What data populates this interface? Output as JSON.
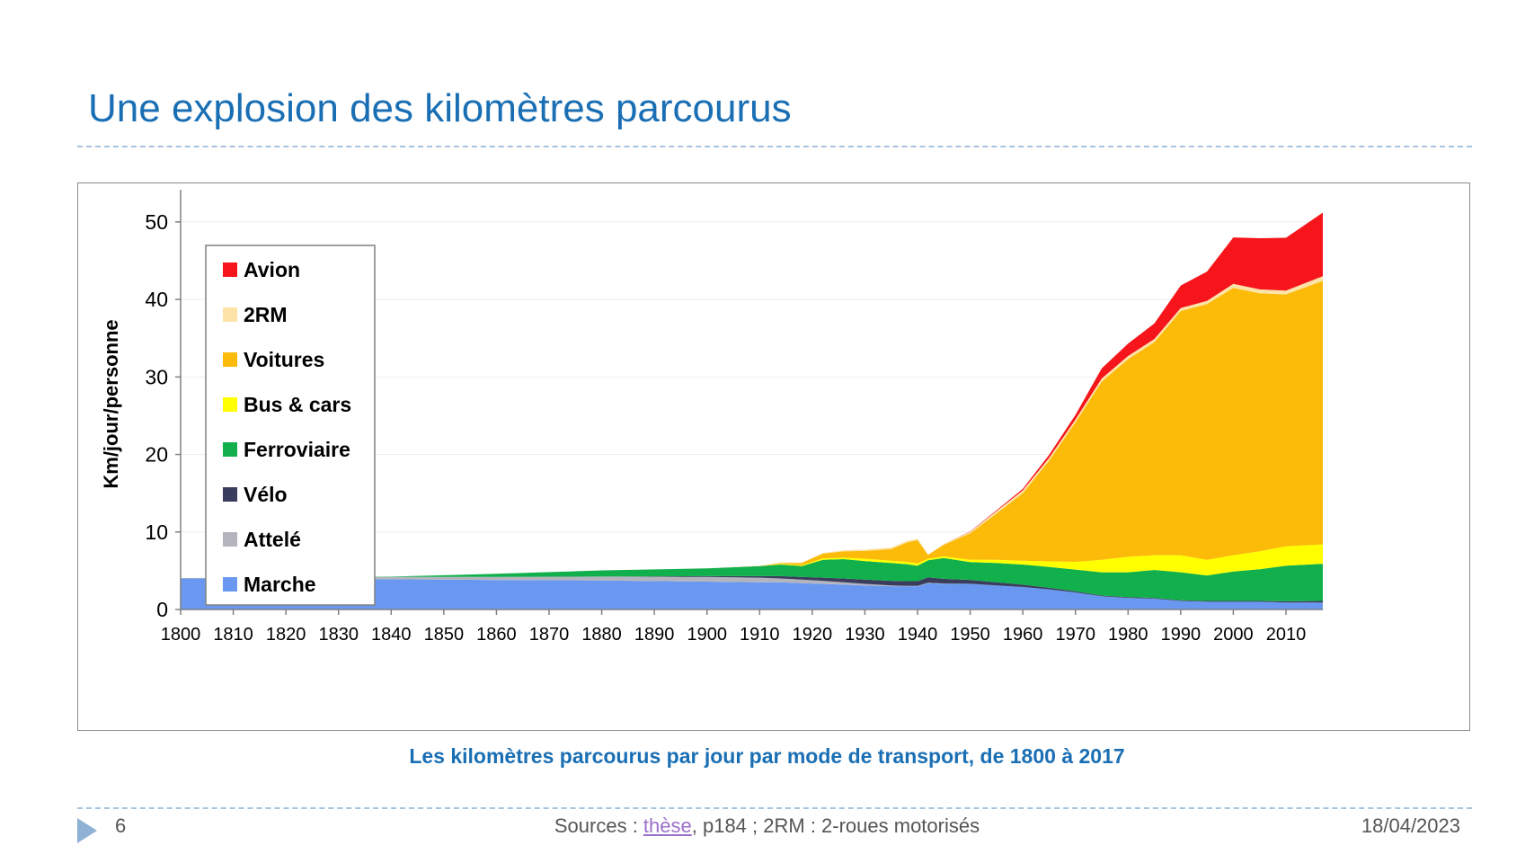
{
  "slide": {
    "title": "Une explosion des kilomètres parcourus",
    "caption": "Les kilomètres parcourus par jour par mode de transport, de 1800 à 2017",
    "page_number": "6",
    "sources_prefix": "Sources : ",
    "sources_link": "thèse",
    "sources_suffix": ", p184 ; 2RM : 2-roues motorisés",
    "date": "18/04/2023"
  },
  "chart_data": {
    "type": "area",
    "stacked": true,
    "ylabel": "Km/jour/personne",
    "xlabel": "",
    "ylim": [
      0,
      53
    ],
    "yticks": [
      0,
      10,
      20,
      30,
      40,
      50
    ],
    "xticks": [
      1800,
      1810,
      1820,
      1830,
      1840,
      1850,
      1860,
      1870,
      1880,
      1890,
      1900,
      1910,
      1920,
      1930,
      1940,
      1950,
      1960,
      1970,
      1980,
      1990,
      2000,
      2010
    ],
    "xlim": [
      1800,
      2017
    ],
    "legend_position": "top-left",
    "grid": "horizontal",
    "x": [
      1800,
      1820,
      1840,
      1860,
      1880,
      1900,
      1910,
      1914,
      1918,
      1922,
      1926,
      1930,
      1935,
      1938,
      1940,
      1942,
      1945,
      1950,
      1955,
      1960,
      1965,
      1970,
      1975,
      1980,
      1985,
      1990,
      1995,
      2000,
      2005,
      2010,
      2017
    ],
    "series": [
      {
        "name": "Marche",
        "color": "#6a98f0",
        "values": [
          4.0,
          3.95,
          3.9,
          3.8,
          3.75,
          3.6,
          3.5,
          3.5,
          3.4,
          3.3,
          3.2,
          3.1,
          3.0,
          3.0,
          3.0,
          3.4,
          3.3,
          3.3,
          3.1,
          2.9,
          2.6,
          2.2,
          1.7,
          1.5,
          1.4,
          1.1,
          1.0,
          1.0,
          1.0,
          0.9,
          0.9
        ]
      },
      {
        "name": "Attelé",
        "color": "#b4b4be",
        "values": [
          0.05,
          0.2,
          0.3,
          0.4,
          0.5,
          0.6,
          0.6,
          0.5,
          0.45,
          0.4,
          0.3,
          0.2,
          0.1,
          0.05,
          0.05,
          0.05,
          0.05,
          0.02,
          0.0,
          0.0,
          0.0,
          0.0,
          0.0,
          0.0,
          0.0,
          0.0,
          0.0,
          0.0,
          0.0,
          0.0,
          0.0
        ]
      },
      {
        "name": "Vélo",
        "color": "#3a3d5c",
        "values": [
          0.0,
          0.0,
          0.0,
          0.0,
          0.0,
          0.1,
          0.2,
          0.3,
          0.35,
          0.4,
          0.5,
          0.55,
          0.6,
          0.6,
          0.6,
          0.7,
          0.6,
          0.5,
          0.4,
          0.3,
          0.2,
          0.15,
          0.1,
          0.1,
          0.1,
          0.1,
          0.1,
          0.1,
          0.1,
          0.15,
          0.2
        ]
      },
      {
        "name": "Ferroviaire",
        "color": "#12b04c",
        "values": [
          0.0,
          0.0,
          0.05,
          0.4,
          0.8,
          1.0,
          1.3,
          1.5,
          1.4,
          2.3,
          2.5,
          2.4,
          2.3,
          2.2,
          2.0,
          2.2,
          2.7,
          2.3,
          2.5,
          2.6,
          2.7,
          2.8,
          3.0,
          3.2,
          3.6,
          3.6,
          3.3,
          3.8,
          4.1,
          4.6,
          4.8
        ]
      },
      {
        "name": "Bus & cars",
        "color": "#ffff00",
        "values": [
          0.0,
          0.0,
          0.0,
          0.0,
          0.0,
          0.0,
          0.0,
          0.1,
          0.1,
          0.2,
          0.2,
          0.3,
          0.3,
          0.3,
          0.3,
          0.2,
          0.2,
          0.3,
          0.4,
          0.5,
          0.7,
          1.0,
          1.6,
          2.0,
          1.9,
          2.2,
          2.0,
          2.1,
          2.3,
          2.5,
          2.5
        ]
      },
      {
        "name": "Voitures",
        "color": "#fbbb08",
        "values": [
          0.0,
          0.0,
          0.0,
          0.0,
          0.0,
          0.0,
          0.0,
          0.1,
          0.3,
          0.6,
          0.8,
          1.0,
          1.5,
          2.5,
          3.0,
          0.5,
          1.5,
          3.4,
          6.0,
          8.7,
          13.0,
          18.0,
          23.0,
          25.5,
          27.5,
          31.5,
          33.0,
          34.5,
          33.3,
          32.5,
          34.0
        ]
      },
      {
        "name": "2RM",
        "color": "#fde3a7",
        "values": [
          0.0,
          0.0,
          0.0,
          0.0,
          0.0,
          0.0,
          0.05,
          0.05,
          0.05,
          0.1,
          0.15,
          0.2,
          0.2,
          0.2,
          0.2,
          0.05,
          0.1,
          0.2,
          0.3,
          0.35,
          0.35,
          0.35,
          0.4,
          0.4,
          0.4,
          0.4,
          0.4,
          0.5,
          0.5,
          0.5,
          0.6
        ]
      },
      {
        "name": "Avion",
        "color": "#f5151a",
        "values": [
          0.0,
          0.0,
          0.0,
          0.0,
          0.0,
          0.0,
          0.0,
          0.0,
          0.0,
          0.0,
          0.0,
          0.0,
          0.0,
          0.0,
          0.0,
          0.0,
          0.0,
          0.05,
          0.1,
          0.2,
          0.4,
          0.6,
          1.3,
          1.6,
          2.0,
          2.9,
          3.8,
          6.0,
          6.6,
          6.8,
          8.2
        ]
      }
    ]
  }
}
